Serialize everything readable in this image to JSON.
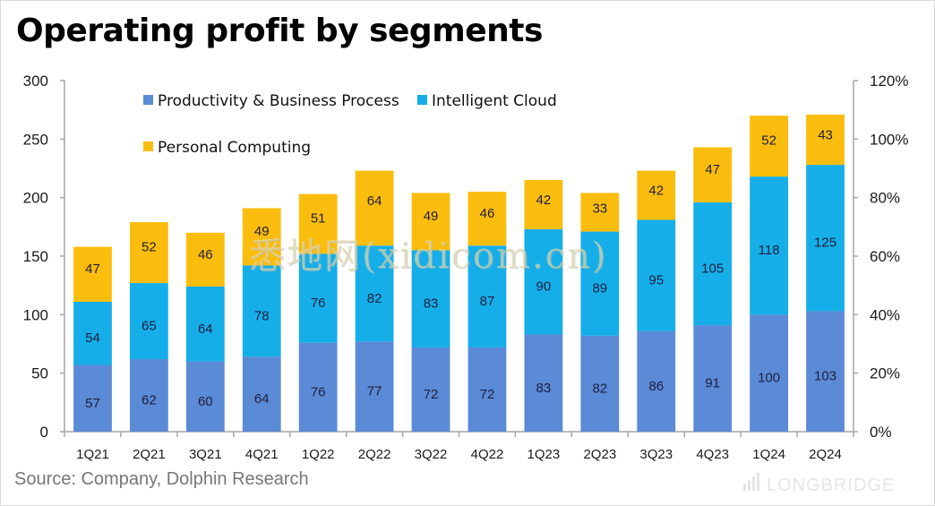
{
  "title": "Operating profit by segments",
  "source": "Source:  Company, Dolphin Research",
  "brand": "LONGBRIDGE",
  "watermark": "悉地网(xidicom.cn)",
  "colors": {
    "productivity": "#5b8ad6",
    "cloud": "#15aee8",
    "personal": "#fbbd0d"
  },
  "chart_data": {
    "type": "bar",
    "stacked": true,
    "title": "Operating profit by segments",
    "xlabel": "",
    "ylabel": "",
    "ylim": [
      0,
      300
    ],
    "yticks": [
      "0",
      "50",
      "100",
      "150",
      "200",
      "250",
      "300"
    ],
    "y2lim": [
      0,
      1.2
    ],
    "y2ticks": [
      "0%",
      "20%",
      "40%",
      "60%",
      "80%",
      "100%",
      "120%"
    ],
    "grid": false,
    "legend_position": "top-left",
    "categories": [
      "1Q21",
      "2Q21",
      "3Q21",
      "4Q21",
      "1Q22",
      "2Q22",
      "3Q22",
      "4Q22",
      "1Q23",
      "2Q23",
      "3Q23",
      "4Q23",
      "1Q24",
      "2Q24"
    ],
    "series": [
      {
        "name": "Productivity & Business Process",
        "key": "productivity",
        "values": [
          57,
          62,
          60,
          64,
          76,
          77,
          72,
          72,
          83,
          82,
          86,
          91,
          100,
          103
        ]
      },
      {
        "name": "Intelligent Cloud",
        "key": "cloud",
        "values": [
          54,
          65,
          64,
          78,
          76,
          82,
          83,
          87,
          90,
          89,
          95,
          105,
          118,
          125
        ]
      },
      {
        "name": "Personal Computing",
        "key": "personal",
        "values": [
          47,
          52,
          46,
          49,
          51,
          64,
          49,
          46,
          42,
          33,
          42,
          47,
          52,
          43
        ]
      }
    ]
  }
}
